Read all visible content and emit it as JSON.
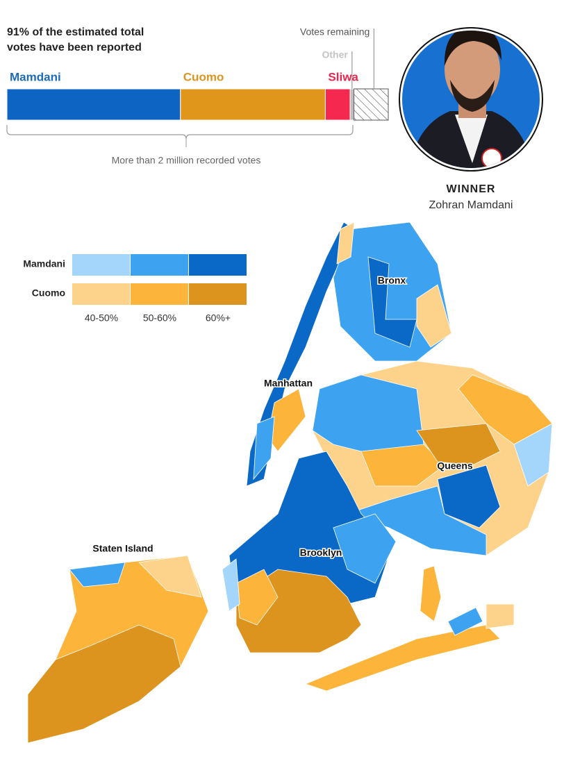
{
  "header": {
    "reported": "91% of the estimated total votes have been reported"
  },
  "bar": {
    "segments": [
      {
        "name": "Mamdani",
        "color": "#0e64c2",
        "label_color": "#1d6bb8",
        "value": 45.5
      },
      {
        "name": "Cuomo",
        "color": "#e0961b",
        "label_color": "#dc9421",
        "value": 38
      },
      {
        "name": "Sliwa",
        "color": "#f5284f",
        "label_color": "#e8264c",
        "value": 6.5
      },
      {
        "name": "Other",
        "color": "#bdbdbd",
        "label_color": "#c4c4c4",
        "value": 1
      },
      {
        "name": "Votes remaining",
        "color": "hatch",
        "label_color": "#555555",
        "value": 9
      }
    ],
    "total_note": "More than 2 million recorded votes"
  },
  "winner": {
    "label": "WINNER",
    "name": "Zohran Mamdani"
  },
  "legend": {
    "rows": [
      {
        "name": "Mamdani",
        "colors": [
          "#a4d5fb",
          "#3da2ef",
          "#0a69c7"
        ]
      },
      {
        "name": "Cuomo",
        "colors": [
          "#fdd38c",
          "#fdb43a",
          "#dc941f"
        ]
      }
    ],
    "bins": [
      "40-50%",
      "50-60%",
      "60%+"
    ]
  },
  "map": {
    "labels": [
      "Bronx",
      "Manhattan",
      "Queens",
      "Brooklyn",
      "Staten Island"
    ]
  }
}
